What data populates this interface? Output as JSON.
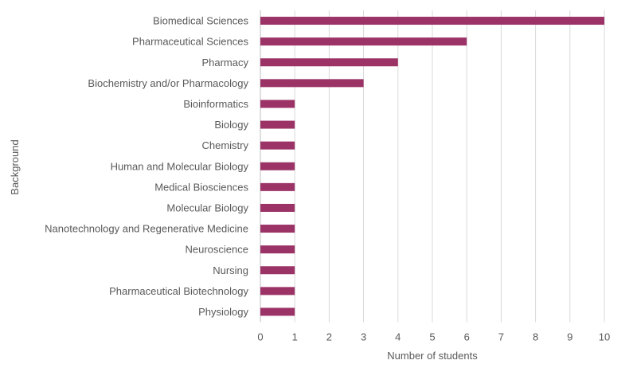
{
  "chart_data": {
    "type": "bar",
    "orientation": "horizontal",
    "categories": [
      "Biomedical Sciences",
      "Pharmaceutical Sciences",
      "Pharmacy",
      "Biochemistry and/or Pharmacology",
      "Bioinformatics",
      "Biology",
      "Chemistry",
      "Human and Molecular Biology",
      "Medical Biosciences",
      "Molecular Biology",
      "Nanotechnology and Regenerative Medicine",
      "Neuroscience",
      "Nursing",
      "Pharmaceutical Biotechnology",
      "Physiology"
    ],
    "values": [
      10,
      6,
      4,
      3,
      1,
      1,
      1,
      1,
      1,
      1,
      1,
      1,
      1,
      1,
      1
    ],
    "title": "",
    "xlabel": "Number of students",
    "ylabel": "Background",
    "xlim": [
      0,
      10
    ],
    "xticks": [
      "0",
      "1",
      "2",
      "3",
      "4",
      "5",
      "6",
      "7",
      "8",
      "9",
      "10"
    ],
    "grid": "vertical",
    "legend": "none",
    "bar_color": "#9b3366"
  }
}
